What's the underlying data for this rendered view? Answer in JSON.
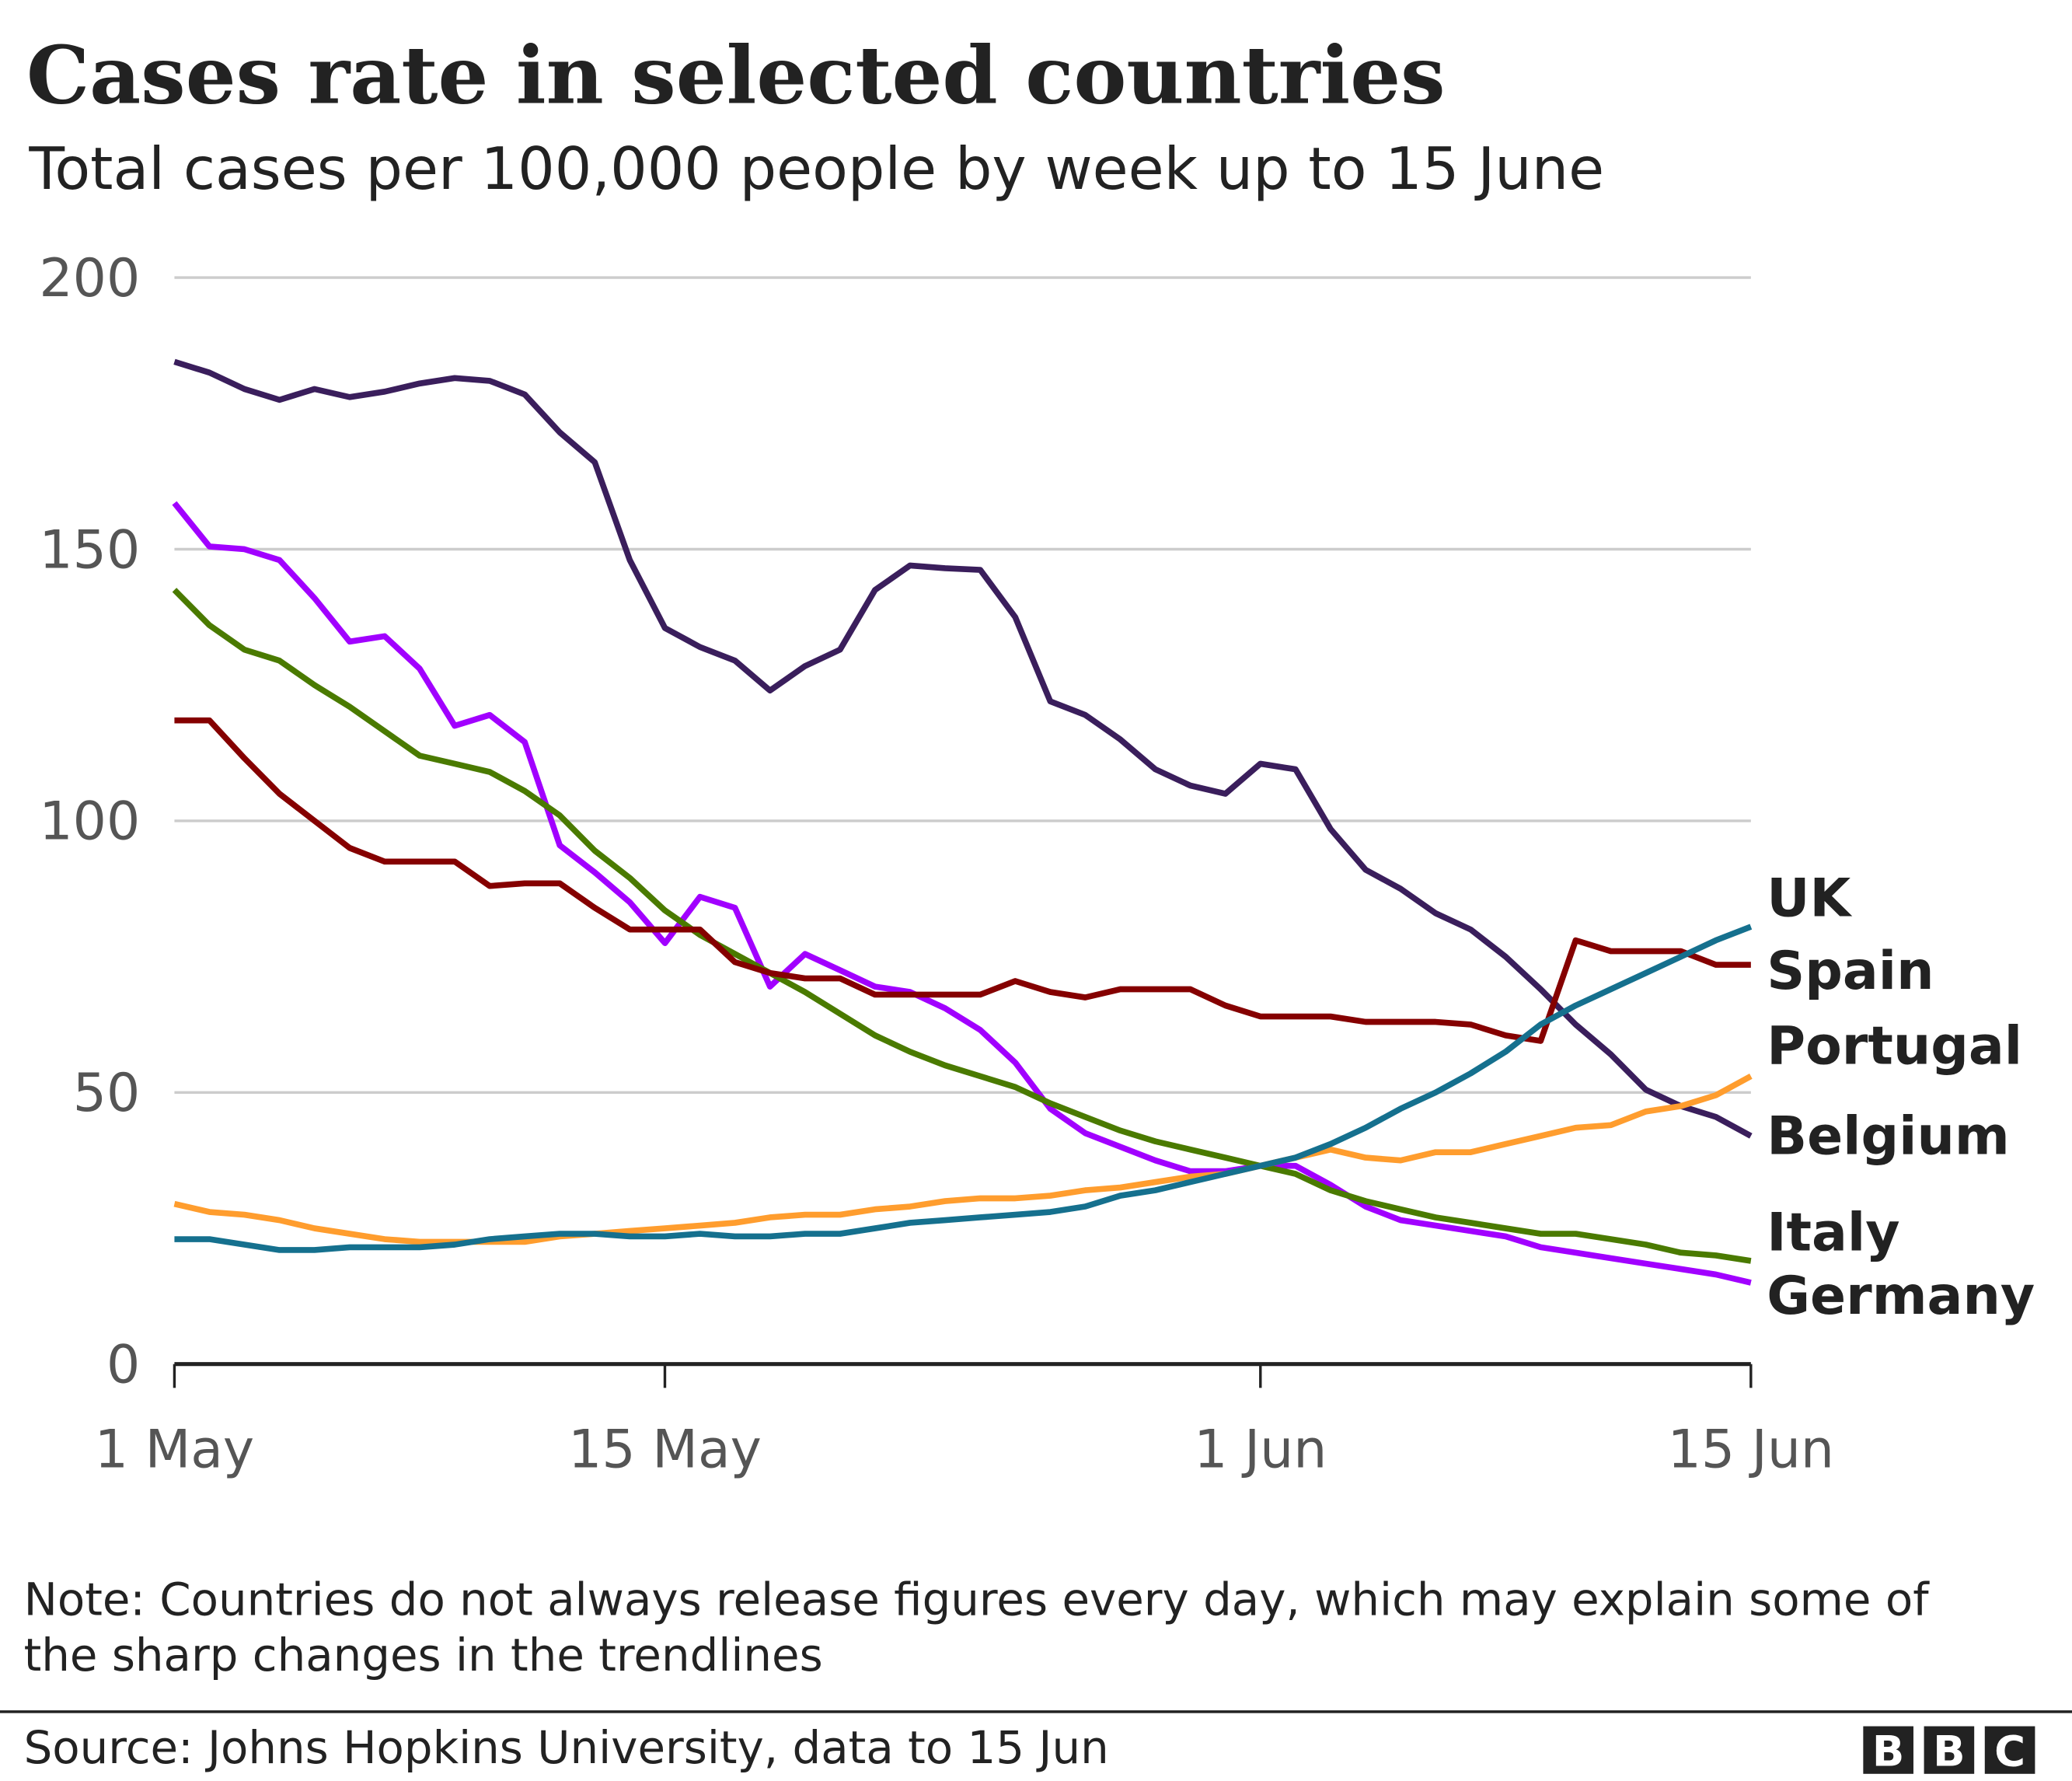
{
  "title": "Cases rate in selected countries",
  "subtitle": "Total cases per 100,000 people by week up to 15 June",
  "note_line1": "Note: Countries do not always release figures every day, which may explain some of",
  "note_line2": "the sharp changes in the trendlines",
  "source": "Source: Johns Hopkins University, data to 15 Jun",
  "logo": [
    "B",
    "B",
    "C"
  ],
  "chart_data": {
    "type": "line",
    "title": "Cases rate in selected countries",
    "subtitle": "Total cases per 100,000 people by week up to 15 June",
    "x_start": "1 May",
    "x_end": "15 Jun",
    "x_frequency": "daily",
    "x_ticks": [
      {
        "label": "1 May",
        "day": 0
      },
      {
        "label": "15 May",
        "day": 14
      },
      {
        "label": "1 Jun",
        "day": 31
      },
      {
        "label": "15 Jun",
        "day": 45
      }
    ],
    "ylim": [
      0,
      200
    ],
    "y_ticks": [
      "0",
      "50",
      "100",
      "150",
      "200"
    ],
    "grid": true,
    "legend": "direct labels at right end",
    "series": [
      {
        "name": "Belgium",
        "color": "#3a1e5c",
        "values": [
          184.5,
          182.5,
          179.5,
          177.5,
          179.5,
          178,
          179,
          180.5,
          181.5,
          181,
          178.5,
          171.5,
          166,
          148,
          135.5,
          132,
          129.5,
          124,
          128.5,
          131.5,
          142.5,
          147,
          146.5,
          146.2,
          137.5,
          122,
          119.5,
          115,
          109.5,
          106.5,
          105,
          110.5,
          109.5,
          98.5,
          91,
          87.5,
          83,
          80,
          75,
          69,
          62.5,
          57,
          50.5,
          47.5,
          45.5,
          42
        ]
      },
      {
        "name": "Germany",
        "color": "#a100ff",
        "values": [
          158.5,
          150.5,
          150,
          148,
          141,
          133,
          134,
          128,
          117.5,
          119.5,
          114.5,
          95.5,
          90.5,
          85,
          77.5,
          86,
          84,
          69.5,
          75.5,
          72.5,
          69.5,
          68.5,
          65.5,
          61.5,
          55.5,
          47,
          42.5,
          40,
          37.5,
          35.5,
          35.5,
          36.5,
          36.5,
          33,
          29,
          26.5,
          25.5,
          24.5,
          23.5,
          21.5,
          20.5,
          19.5,
          18.5,
          17.5,
          16.5,
          15
        ]
      },
      {
        "name": "Italy",
        "color": "#4a7a00",
        "values": [
          142.5,
          136,
          131.5,
          129.5,
          125,
          121,
          116.5,
          112,
          110.5,
          109,
          105.5,
          101,
          94.5,
          89.5,
          83.5,
          79,
          75.5,
          72,
          68.5,
          64.5,
          60.5,
          57.5,
          55,
          53,
          51,
          48,
          45.5,
          43,
          41,
          39.5,
          38,
          36.5,
          35,
          32,
          30,
          28.5,
          27,
          26,
          25,
          24,
          24,
          23,
          22,
          20.5,
          20,
          19
        ]
      },
      {
        "name": "Spain",
        "color": "#850000",
        "values": [
          118.5,
          118.5,
          111.5,
          105,
          100,
          95,
          92.5,
          92.5,
          92.5,
          88,
          88.5,
          88.5,
          84,
          80,
          80,
          80,
          74,
          72,
          71,
          71,
          68,
          68,
          68,
          68,
          70.5,
          68.5,
          67.5,
          69,
          69,
          69,
          66,
          64,
          64,
          64,
          63,
          63,
          63,
          62.5,
          60.5,
          59.5,
          78,
          76,
          76,
          76,
          73.5,
          73.5
        ]
      },
      {
        "name": "Portugal",
        "color": "#ff9d2e",
        "values": [
          29.5,
          28,
          27.5,
          26.5,
          25,
          24,
          23,
          22.5,
          22.5,
          22.5,
          22.5,
          23.5,
          24,
          24.5,
          25,
          25.5,
          26,
          27,
          27.5,
          27.5,
          28.5,
          29,
          30,
          30.5,
          30.5,
          31,
          32,
          32.5,
          33.5,
          34.5,
          35,
          36.5,
          38,
          39.5,
          38,
          37.5,
          39,
          39,
          40.5,
          42,
          43.5,
          44,
          46.5,
          47.5,
          49.5,
          53
        ]
      },
      {
        "name": "UK",
        "color": "#15708e",
        "values": [
          23,
          23,
          22,
          21,
          21,
          21.5,
          21.5,
          21.5,
          22,
          23,
          23.5,
          24,
          24,
          23.5,
          23.5,
          24,
          23.5,
          23.5,
          24,
          24,
          25,
          26,
          26.5,
          27,
          27.5,
          28,
          29,
          31,
          32,
          33.5,
          35,
          36.5,
          38,
          40.5,
          43.5,
          47,
          50,
          53.5,
          57.5,
          62.5,
          66,
          69,
          72,
          75,
          78,
          80.5
        ]
      }
    ],
    "end_labels": [
      "UK",
      "Spain",
      "Portugal",
      "Belgium",
      "Italy",
      "Germany"
    ]
  }
}
